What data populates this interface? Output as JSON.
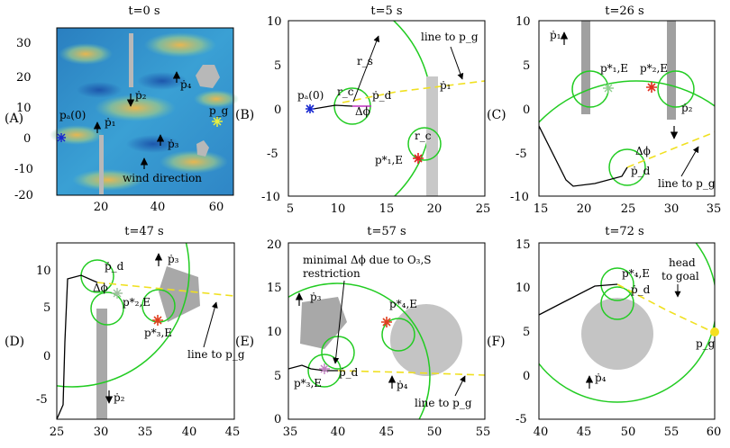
{
  "figure": {
    "panels": [
      {
        "id": "A",
        "label": "(A)",
        "title": "t=0 s",
        "xticks": [
          "20",
          "40",
          "60"
        ],
        "yticks": [
          "30",
          "20",
          "10",
          "0",
          "-10",
          "-20"
        ],
        "annotations": {
          "start": "pₐ(0)",
          "goal": "p_g",
          "p1": "ṗ₁",
          "p2": "ṗ₂",
          "p3": "ṗ₃",
          "p4": "ṗ₄",
          "wind": "wind direction"
        }
      },
      {
        "id": "B",
        "label": "(B)",
        "title": "t=5 s",
        "xticks": [
          "5",
          "10",
          "15",
          "20",
          "25"
        ],
        "yticks": [
          "10",
          "5",
          "0",
          "-5",
          "-10"
        ],
        "annotations": {
          "start": "pₐ(0)",
          "rs": "r_s",
          "rc_top": "r_c",
          "rc_bottom": "r_c",
          "dphi": "Δϕ",
          "pd": "ṗ_d",
          "p1": "ṗ₁",
          "p1E": "p*₁,E",
          "line": "line to p_g"
        }
      },
      {
        "id": "C",
        "label": "(C)",
        "title": "t=26 s",
        "xticks": [
          "15",
          "20",
          "25",
          "30",
          "35"
        ],
        "yticks": [
          "10",
          "5",
          "0",
          "-5",
          "-10"
        ],
        "annotations": {
          "p1": "ṗ₁",
          "p1E": "p*₁,E",
          "p2E": "p*₂,E",
          "p2": "ṗ₂",
          "dphi": "Δϕ",
          "pd": "ṗ_d",
          "line": "line to p_g"
        }
      },
      {
        "id": "D",
        "label": "(D)",
        "title": "t=47 s",
        "xticks": [
          "25",
          "30",
          "35",
          "40",
          "45"
        ],
        "yticks": [
          "10",
          "5",
          "0",
          "-5"
        ],
        "annotations": {
          "pd": "ṗ_d",
          "dphi": "Δϕ",
          "p2E": "p*₂,E",
          "p3": "ṗ₃",
          "p3E": "p*₃,E",
          "p2": "ṗ₂",
          "line": "line to p_g"
        }
      },
      {
        "id": "E",
        "label": "(E)",
        "title": "t=57 s",
        "xticks": [
          "35",
          "40",
          "45",
          "50",
          "55"
        ],
        "yticks": [
          "20",
          "15",
          "10",
          "5",
          "0"
        ],
        "annotations": {
          "note1": "minimal Δϕ due to O₃,S",
          "note2": "restriction",
          "p3": "ṗ₃",
          "p3E": "p*₃,E",
          "pd": "ṗ_d",
          "p4E": "p*₄,E",
          "p4": "ṗ₄",
          "line": "line to p_g"
        }
      },
      {
        "id": "F",
        "label": "(F)",
        "title": "t=72 s",
        "xticks": [
          "40",
          "45",
          "50",
          "55",
          "60"
        ],
        "yticks": [
          "15",
          "10",
          "5",
          "0",
          "-5"
        ],
        "annotations": {
          "p4E": "p*₄,E",
          "pd": "ṗ_d",
          "head1": "head",
          "head2": "to goal",
          "goal": "p_g",
          "p4": "ṗ₄"
        }
      }
    ]
  }
}
